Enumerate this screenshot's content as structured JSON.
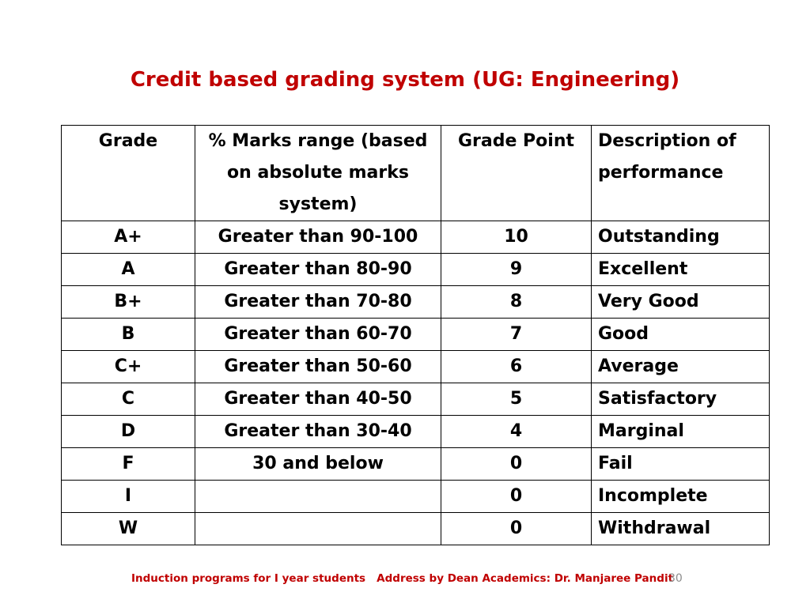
{
  "title": "Credit based grading system (UG: Engineering)",
  "table": {
    "headers": [
      "Grade",
      "% Marks range (based on absolute marks system)",
      "Grade Point",
      "Description of performance"
    ],
    "rows": [
      [
        "A+",
        "Greater than 90-100",
        "10",
        "Outstanding"
      ],
      [
        "A",
        "Greater than 80-90",
        "9",
        "Excellent"
      ],
      [
        "B+",
        "Greater than 70-80",
        "8",
        "Very Good"
      ],
      [
        "B",
        "Greater than 60-70",
        "7",
        "Good"
      ],
      [
        "C+",
        "Greater than 50-60",
        "6",
        "Average"
      ],
      [
        "C",
        "Greater than 40-50",
        "5",
        "Satisfactory"
      ],
      [
        "D",
        "Greater than 30-40",
        "4",
        "Marginal"
      ],
      [
        "F",
        "30 and below",
        "0",
        "Fail"
      ],
      [
        "I",
        "",
        "0",
        "Incomplete"
      ],
      [
        "W",
        "",
        "0",
        "Withdrawal"
      ]
    ]
  },
  "footer": {
    "text": "Induction programs for I year students   Address by Dean Academics: Dr. Manjaree Pandit",
    "page_number": "30"
  },
  "colors": {
    "title": "#c00000",
    "footer": "#c00000",
    "page_number": "#8c8c8c"
  }
}
